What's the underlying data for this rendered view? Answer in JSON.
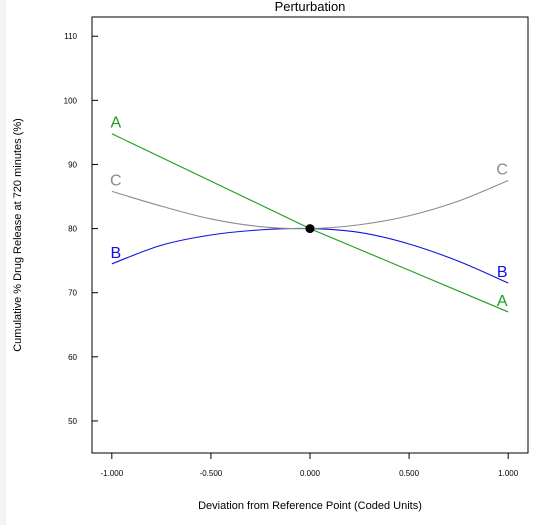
{
  "chart_data": {
    "type": "line",
    "title": "Perturbation",
    "xlabel": "Deviation from Reference Point (Coded Units)",
    "ylabel": "Cumulative % Drug Release at 720 minutes  (%)",
    "xlim": [
      -1.1,
      1.1
    ],
    "ylim": [
      45,
      113
    ],
    "xticks": [
      -1.0,
      -0.5,
      0.0,
      0.5,
      1.0
    ],
    "xtick_labels": [
      "-1.000",
      "-0.500",
      "0.000",
      "0.500",
      "1.000"
    ],
    "yticks": [
      50,
      60,
      70,
      80,
      90,
      100,
      110
    ],
    "ytick_labels": [
      "50",
      "60",
      "70",
      "80",
      "90",
      "100",
      "110"
    ],
    "grid": false,
    "reference_point": {
      "x": 0.0,
      "y": 80.0
    },
    "series": [
      {
        "name": "A",
        "color": "#1a9e1a",
        "x": [
          -1.0,
          -0.5,
          0.0,
          0.5,
          1.0
        ],
        "y": [
          94.8,
          87.4,
          80.0,
          73.5,
          67.0
        ]
      },
      {
        "name": "B",
        "color": "#1010e0",
        "x": [
          -1.0,
          -0.75,
          -0.5,
          -0.25,
          0.0,
          0.25,
          0.5,
          0.75,
          1.0
        ],
        "y": [
          74.5,
          77.4,
          79.0,
          79.8,
          80.0,
          79.4,
          77.6,
          74.9,
          71.5
        ]
      },
      {
        "name": "C",
        "color": "#8c8c8c",
        "x": [
          -1.0,
          -0.75,
          -0.5,
          -0.25,
          0.0,
          0.25,
          0.5,
          0.75,
          1.0
        ],
        "y": [
          85.8,
          83.5,
          81.5,
          80.3,
          80.0,
          80.6,
          82.0,
          84.3,
          87.5
        ]
      }
    ]
  }
}
